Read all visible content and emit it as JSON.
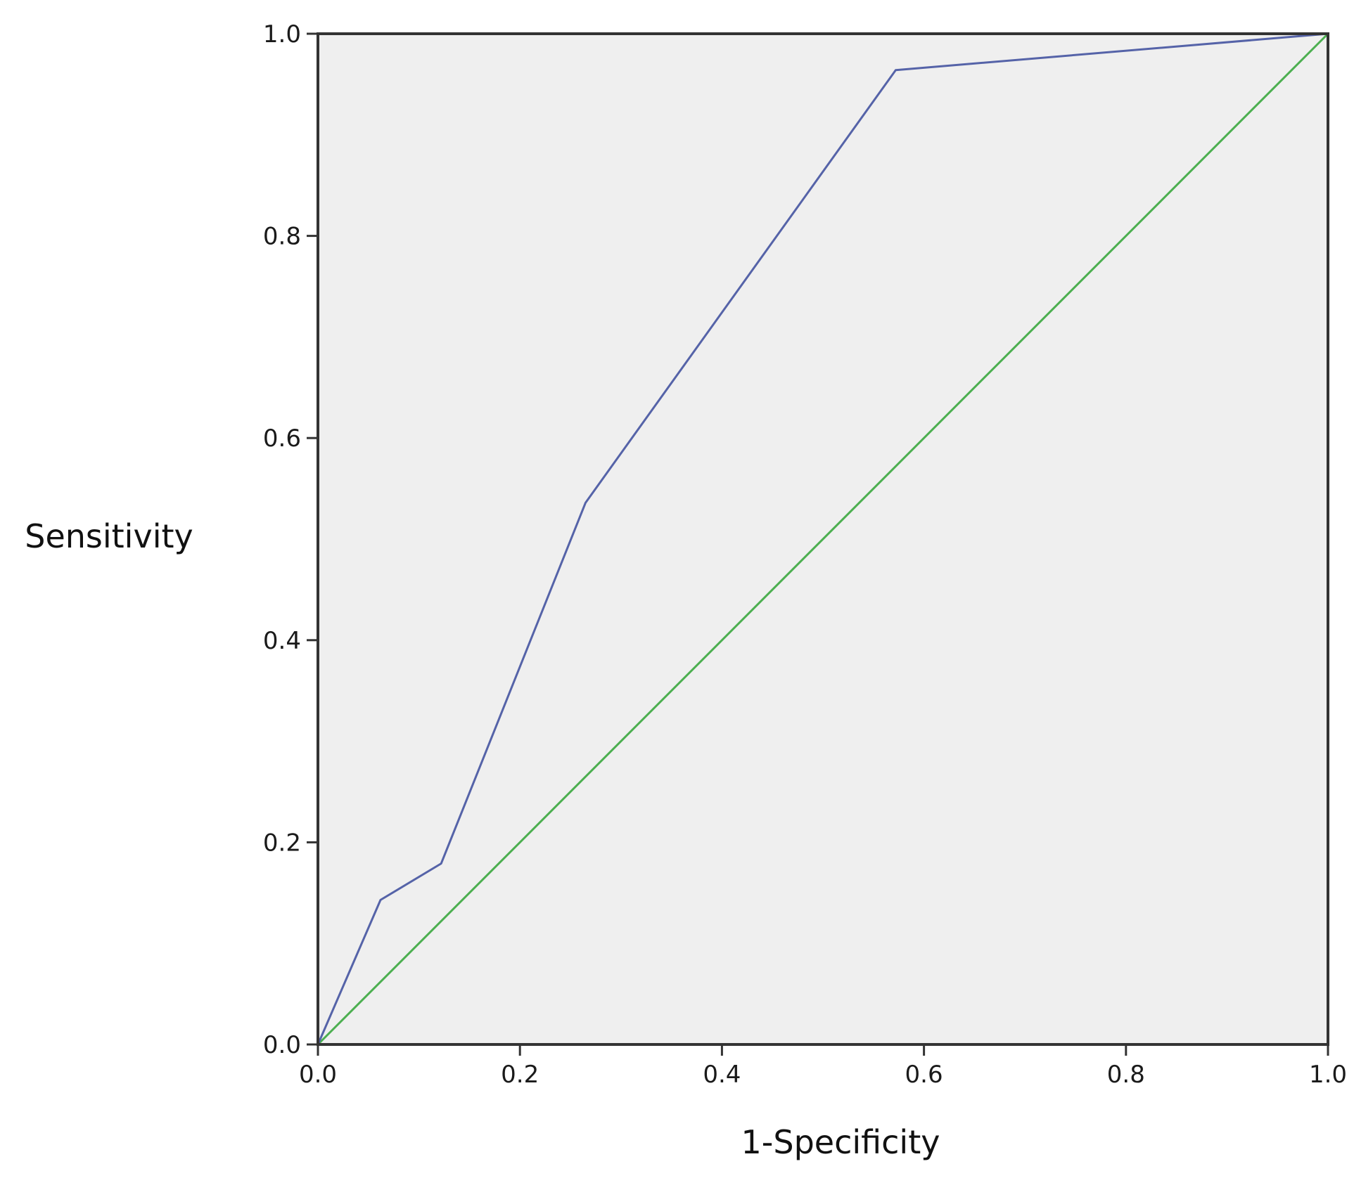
{
  "chart_data": {
    "type": "line",
    "title": "",
    "xlabel": "1-Specificity",
    "ylabel": "Sensitivity",
    "xlim": [
      0.0,
      1.0
    ],
    "ylim": [
      0.0,
      1.0
    ],
    "x_ticks": [
      "0.0",
      "0.2",
      "0.4",
      "0.6",
      "0.8",
      "1.0"
    ],
    "y_ticks": [
      "0.0",
      "0.2",
      "0.4",
      "0.6",
      "0.8",
      "1.0"
    ],
    "grid": false,
    "legend": "none",
    "colors": {
      "plot_background": "#efefef",
      "frame": "#333333",
      "roc_curve": "#5563a8",
      "reference_line": "#4caf50"
    },
    "series": [
      {
        "x": [
          0.0,
          0.062,
          0.122,
          0.265,
          0.572,
          1.0
        ],
        "y": [
          0.0,
          0.143,
          0.179,
          0.536,
          0.964,
          1.0
        ]
      },
      {
        "x": [
          0.0,
          1.0
        ],
        "y": [
          0.0,
          1.0
        ]
      }
    ]
  }
}
